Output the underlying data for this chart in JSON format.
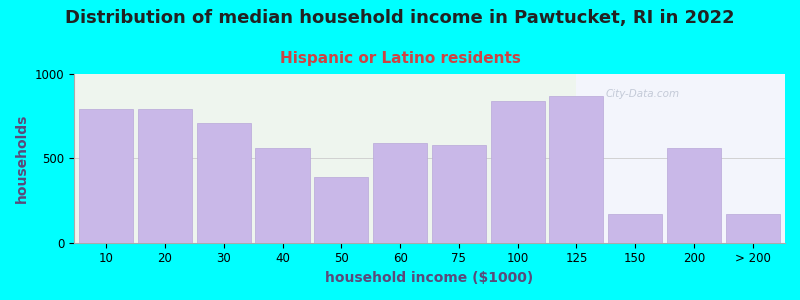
{
  "title": "Distribution of median household income in Pawtucket, RI in 2022",
  "subtitle": "Hispanic or Latino residents",
  "xlabel": "household income ($1000)",
  "ylabel": "households",
  "background_color": "#00FFFF",
  "bar_color": "#c9b8e8",
  "bar_edge_color": "#b8a8d8",
  "categories": [
    "10",
    "20",
    "30",
    "40",
    "50",
    "60",
    "75",
    "100",
    "125",
    "150",
    "200",
    "> 200"
  ],
  "values": [
    790,
    790,
    710,
    560,
    390,
    590,
    580,
    840,
    870,
    170,
    560,
    170
  ],
  "ylim": [
    0,
    1000
  ],
  "title_fontsize": 13,
  "subtitle_fontsize": 11,
  "axis_label_fontsize": 10,
  "tick_fontsize": 8.5,
  "title_color": "#222222",
  "subtitle_color": "#cc4444",
  "axis_label_color": "#5a4a7a",
  "watermark": "City-Data.com",
  "bg_left_color": "#eef5ee",
  "bg_right_color": "#f5f5ff",
  "split_index": 8.5
}
